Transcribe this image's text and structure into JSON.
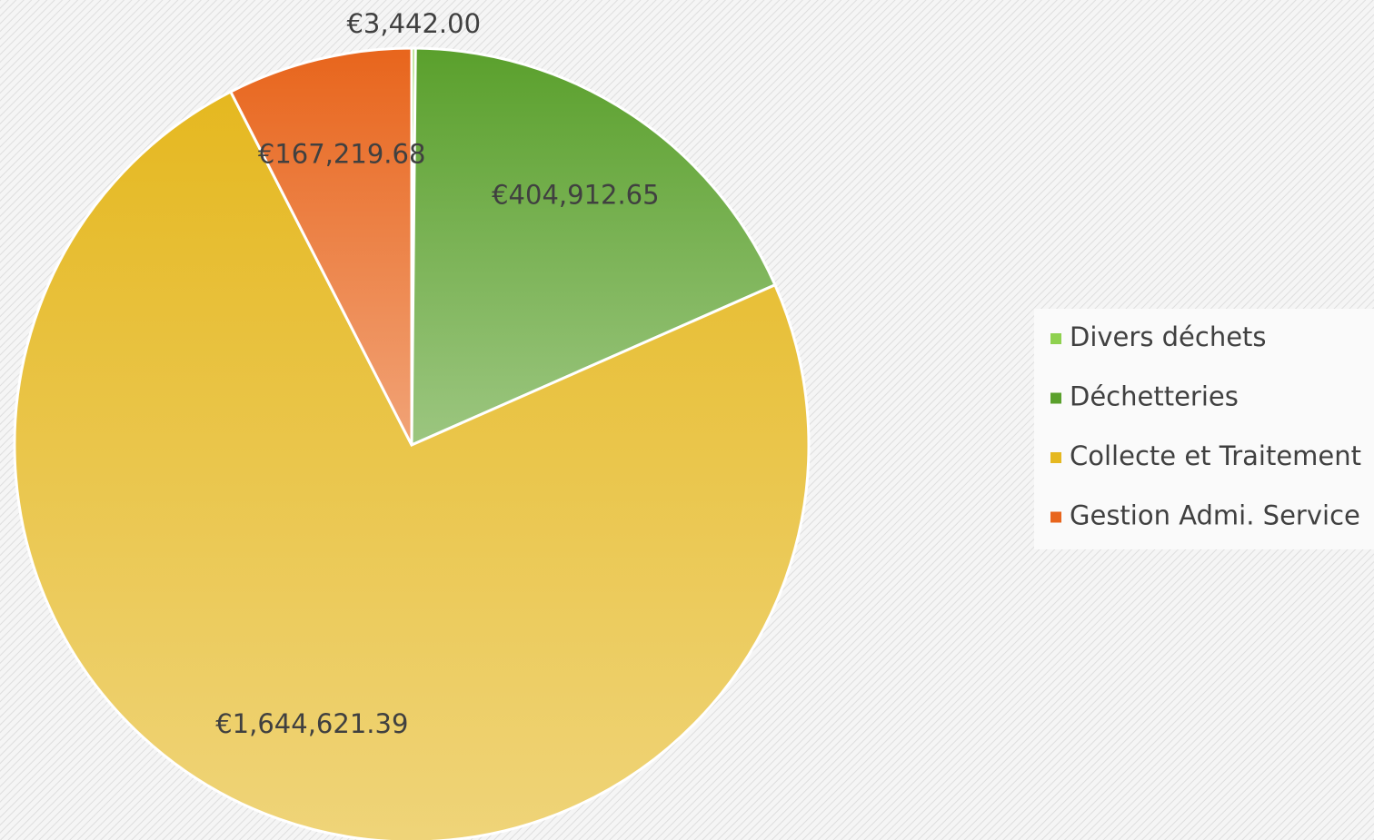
{
  "chart_data": {
    "type": "pie",
    "categories": [
      "Divers déchets",
      "Déchetteries",
      "Collecte et Traitement",
      "Gestion Admi. Service"
    ],
    "values": [
      3442.0,
      404912.65,
      1644621.39,
      167219.68
    ],
    "value_labels": [
      "€3,442.00",
      "€404,912.65",
      "€1,644,621.39",
      "€167,219.68"
    ],
    "colors": [
      "#8fd14f",
      "#5aa02c",
      "#e5b820",
      "#e8651c"
    ],
    "legend": "right"
  }
}
